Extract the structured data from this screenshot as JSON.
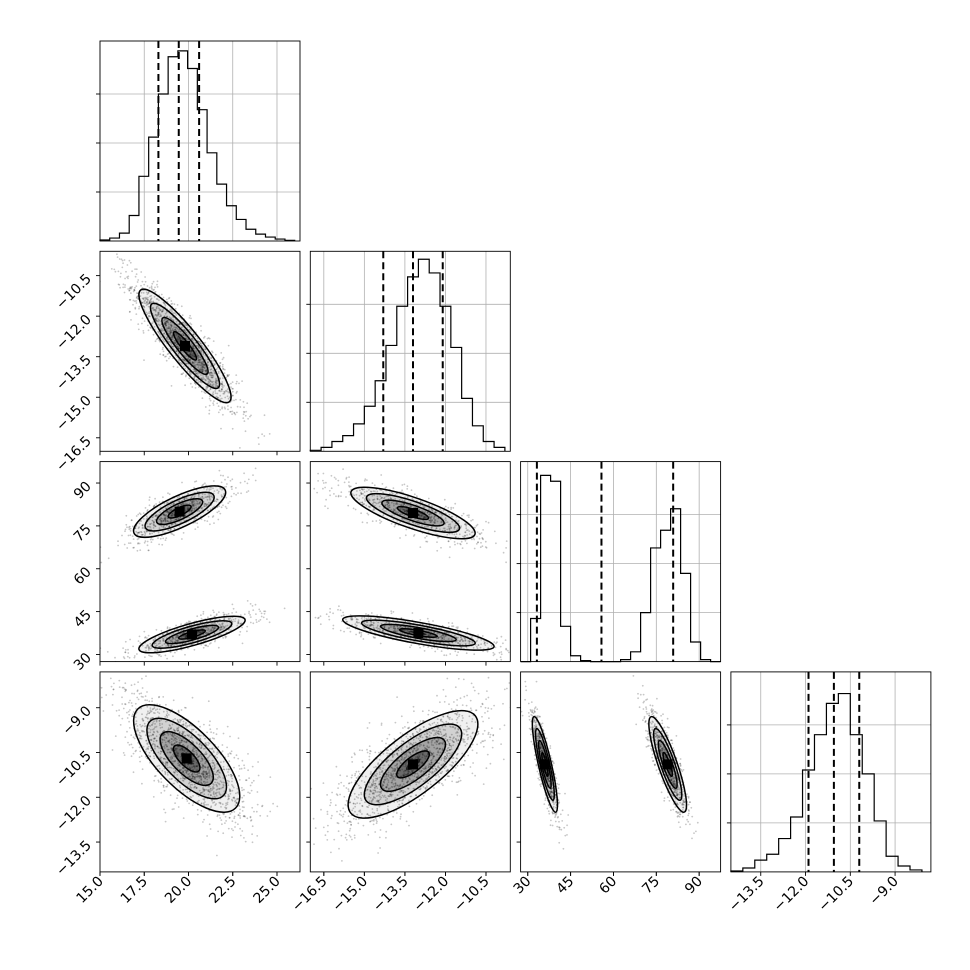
{
  "chart_data": {
    "type": "corner",
    "parameters": [
      {
        "ticks": [
          15.0,
          17.5,
          20.0,
          22.5,
          25.0
        ],
        "tick_labels": [
          "15.0",
          "17.5",
          "20.0",
          "22.5",
          "25.0"
        ],
        "range": [
          15.0,
          26.3
        ]
      },
      {
        "ticks": [
          -16.5,
          -15.0,
          -13.5,
          -12.0,
          -10.5
        ],
        "tick_labels": [
          "−16.5",
          "−15.0",
          "−13.5",
          "−12.0",
          "−10.5"
        ],
        "range": [
          -17.0,
          -9.6
        ]
      },
      {
        "ticks": [
          30,
          45,
          60,
          75,
          90
        ],
        "tick_labels": [
          "30",
          "45",
          "60",
          "75",
          "90"
        ],
        "range": [
          27.5,
          97.5
        ]
      },
      {
        "ticks": [
          -13.5,
          -12.0,
          -10.5,
          -9.0
        ],
        "tick_labels": [
          "−13.5",
          "−12.0",
          "−10.5",
          "−9.0"
        ],
        "range": [
          -14.5,
          -7.8
        ]
      }
    ],
    "histograms": [
      {
        "param": 0,
        "bins": [
          15.0,
          15.55,
          16.1,
          16.65,
          17.2,
          17.75,
          18.3,
          18.85,
          19.4,
          19.95,
          20.5,
          21.05,
          21.6,
          22.15,
          22.7,
          23.25,
          23.8,
          24.35,
          24.9,
          25.45,
          26.0
        ],
        "counts": [
          0.005,
          0.015,
          0.04,
          0.13,
          0.33,
          0.53,
          0.75,
          0.94,
          0.97,
          0.88,
          0.67,
          0.45,
          0.29,
          0.18,
          0.11,
          0.06,
          0.035,
          0.02,
          0.01,
          0.003
        ],
        "quantiles": [
          18.3,
          19.45,
          20.6
        ]
      },
      {
        "param": 1,
        "bins": [
          -17.0,
          -16.6,
          -16.2,
          -15.8,
          -15.4,
          -15.0,
          -14.6,
          -14.2,
          -13.8,
          -13.4,
          -13.0,
          -12.6,
          -12.2,
          -11.8,
          -11.4,
          -11.0,
          -10.6,
          -10.2,
          -9.8
        ],
        "counts": [
          0.005,
          0.02,
          0.05,
          0.08,
          0.14,
          0.23,
          0.36,
          0.54,
          0.74,
          0.89,
          0.98,
          0.91,
          0.74,
          0.53,
          0.27,
          0.13,
          0.05,
          0.02
        ],
        "quantiles": [
          -14.3,
          -13.2,
          -12.1
        ]
      },
      {
        "param": 2,
        "bins": [
          27.5,
          31.0,
          34.5,
          38.0,
          41.5,
          45.0,
          48.5,
          52.0,
          55.5,
          59.0,
          62.5,
          66.0,
          69.5,
          73.0,
          76.5,
          80.0,
          83.5,
          87.0,
          90.5,
          94.0,
          97.5
        ],
        "counts": [
          0.0,
          0.22,
          0.95,
          0.92,
          0.18,
          0.03,
          0.005,
          0.0,
          0.0,
          0.0,
          0.01,
          0.05,
          0.25,
          0.58,
          0.67,
          0.78,
          0.45,
          0.1,
          0.01,
          0.0
        ],
        "quantiles": [
          33.2,
          55.8,
          80.9
        ]
      },
      {
        "param": 3,
        "bins": [
          -14.5,
          -14.1,
          -13.7,
          -13.3,
          -12.9,
          -12.5,
          -12.1,
          -11.7,
          -11.3,
          -10.9,
          -10.5,
          -10.1,
          -9.7,
          -9.3,
          -8.9,
          -8.5,
          -8.1
        ],
        "counts": [
          0.005,
          0.02,
          0.06,
          0.09,
          0.17,
          0.28,
          0.52,
          0.7,
          0.86,
          0.91,
          0.7,
          0.5,
          0.26,
          0.08,
          0.03,
          0.01
        ],
        "quantiles": [
          -11.9,
          -11.05,
          -10.2
        ]
      }
    ],
    "joint": [
      {
        "x_param": 0,
        "y_param": 1,
        "components": [
          {
            "mean": [
              19.8,
              -13.1
            ],
            "sd": [
              1.3,
              1.05
            ],
            "corr": -0.9,
            "weight": 1.0
          }
        ]
      },
      {
        "x_param": 0,
        "y_param": 2,
        "components": [
          {
            "mean": [
              19.5,
              80.0
            ],
            "sd": [
              1.3,
              4.5
            ],
            "corr": 0.75,
            "weight": 0.5
          },
          {
            "mean": [
              20.2,
              37.0
            ],
            "sd": [
              1.5,
              3.2
            ],
            "corr": 0.78,
            "weight": 0.5
          }
        ]
      },
      {
        "x_param": 1,
        "y_param": 2,
        "components": [
          {
            "mean": [
              -13.2,
              79.5
            ],
            "sd": [
              1.15,
              4.5
            ],
            "corr": -0.78,
            "weight": 0.5
          },
          {
            "mean": [
              -13.0,
              37.5
            ],
            "sd": [
              1.4,
              3.0
            ],
            "corr": -0.78,
            "weight": 0.5
          }
        ]
      },
      {
        "x_param": 0,
        "y_param": 3,
        "components": [
          {
            "mean": [
              19.9,
              -10.7
            ],
            "sd": [
              1.5,
              0.9
            ],
            "corr": -0.7,
            "weight": 1.0
          }
        ]
      },
      {
        "x_param": 1,
        "y_param": 3,
        "components": [
          {
            "mean": [
              -13.2,
              -10.9
            ],
            "sd": [
              1.2,
              0.9
            ],
            "corr": 0.75,
            "weight": 1.0
          }
        ]
      },
      {
        "x_param": 2,
        "y_param": 3,
        "components": [
          {
            "mean": [
              36.0,
              -10.9
            ],
            "sd": [
              2.2,
              0.8
            ],
            "corr": -0.85,
            "weight": 0.5
          },
          {
            "mean": [
              79.0,
              -10.9
            ],
            "sd": [
              3.3,
              0.8
            ],
            "corr": -0.85,
            "weight": 0.5
          }
        ]
      }
    ],
    "grid": true,
    "colors": {
      "line": "#000000",
      "grid": "#b0b0b0",
      "density": "#000000"
    }
  }
}
